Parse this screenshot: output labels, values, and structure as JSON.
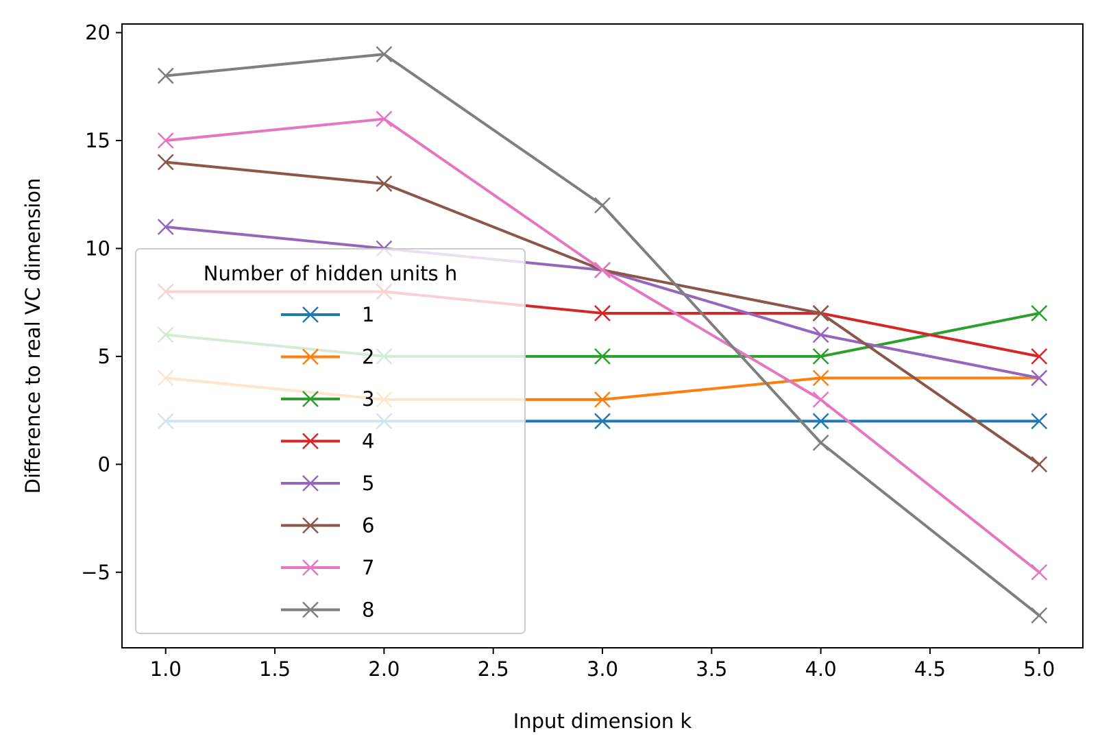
{
  "chart_data": {
    "type": "line",
    "title": "",
    "xlabel": "Input dimension k",
    "ylabel": "Difference to real VC dimension",
    "xlim": [
      0.8,
      5.2
    ],
    "ylim": [
      -8.5,
      20.4
    ],
    "x": [
      1.0,
      2.0,
      3.0,
      4.0,
      5.0
    ],
    "xticks": [
      1.0,
      1.5,
      2.0,
      2.5,
      3.0,
      3.5,
      4.0,
      4.5,
      5.0
    ],
    "xtick_labels": [
      "1.0",
      "1.5",
      "2.0",
      "2.5",
      "3.0",
      "3.5",
      "4.0",
      "4.5",
      "5.0"
    ],
    "yticks": [
      -5,
      0,
      5,
      10,
      15,
      20
    ],
    "ytick_labels": [
      "−5",
      "0",
      "5",
      "10",
      "15",
      "20"
    ],
    "marker": "x",
    "grid": false,
    "legend": {
      "title": "Number of hidden units h",
      "placement": "center-left"
    },
    "series": [
      {
        "name": "1",
        "color": "#1f77b4",
        "values": [
          2,
          2,
          2,
          2,
          2
        ]
      },
      {
        "name": "2",
        "color": "#ff7f0e",
        "values": [
          4,
          3,
          3,
          4,
          4
        ]
      },
      {
        "name": "3",
        "color": "#2ca02c",
        "values": [
          6,
          5,
          5,
          5,
          7
        ]
      },
      {
        "name": "4",
        "color": "#d62728",
        "values": [
          8,
          8,
          7,
          7,
          5
        ]
      },
      {
        "name": "5",
        "color": "#9467bd",
        "values": [
          11,
          10,
          9,
          6,
          4
        ]
      },
      {
        "name": "6",
        "color": "#8c564b",
        "values": [
          14,
          13,
          9,
          7,
          0
        ]
      },
      {
        "name": "7",
        "color": "#e377c2",
        "values": [
          15,
          16,
          9,
          3,
          -5
        ]
      },
      {
        "name": "8",
        "color": "#7f7f7f",
        "values": [
          18,
          19,
          12,
          1,
          -7
        ]
      }
    ]
  }
}
